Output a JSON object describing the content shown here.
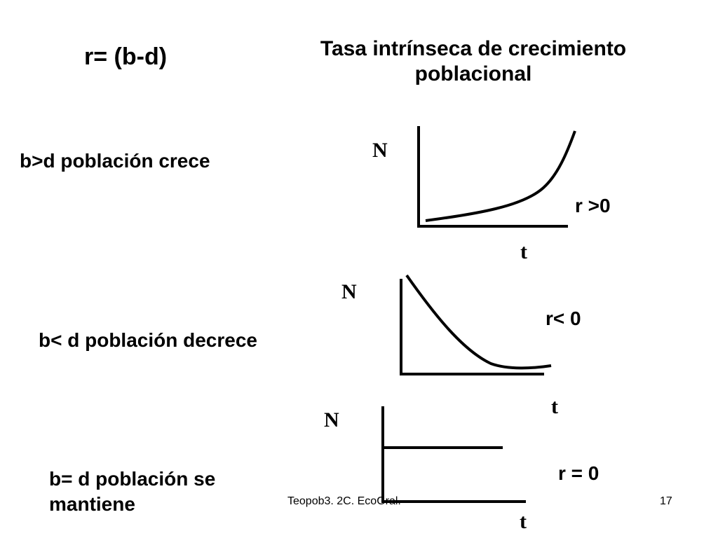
{
  "slide": {
    "formula": "r= (b-d)",
    "title": "Tasa intrínseca de crecimiento poblacional",
    "cases": [
      {
        "text": "b>d  población crece"
      },
      {
        "text": "b< d población decrece"
      },
      {
        "text": "b= d  población se mantiene"
      }
    ],
    "graphs": [
      {
        "y_label": "N",
        "x_label": "t",
        "r_label": "r >0",
        "trend": "exponential-growth"
      },
      {
        "y_label": "N",
        "x_label": "t",
        "r_label": "r< 0",
        "trend": "exponential-decay"
      },
      {
        "y_label": "N",
        "x_label": "t",
        "r_label": "r = 0",
        "trend": "constant"
      }
    ],
    "footer": {
      "source": "Teopob3. 2C.  EcoGral.",
      "page_number": "17"
    }
  }
}
